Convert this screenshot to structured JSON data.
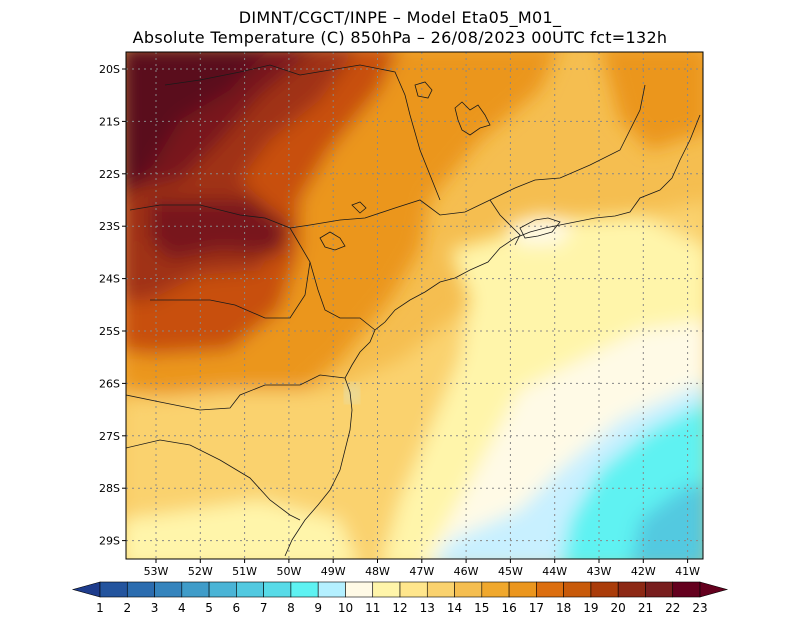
{
  "header": {
    "line1": "DIMNT/CGCT/INPE –  Model Eta05_M01_",
    "line2": "Absolute Temperature (C) 850hPa –  26/08/2023 00UTC fct=132h"
  },
  "axes": {
    "lat_labels": [
      "20S",
      "21S",
      "22S",
      "23S",
      "24S",
      "25S",
      "26S",
      "27S",
      "28S",
      "29S"
    ],
    "lon_labels": [
      "53W",
      "52W",
      "51W",
      "50W",
      "49W",
      "48W",
      "47W",
      "46W",
      "45W",
      "44W",
      "43W",
      "42W",
      "41W"
    ]
  },
  "colorbar": {
    "labels": [
      "1",
      "2",
      "3",
      "4",
      "5",
      "6",
      "7",
      "8",
      "9",
      "10",
      "11",
      "12",
      "13",
      "14",
      "15",
      "16",
      "17",
      "18",
      "19",
      "20",
      "21",
      "22",
      "23"
    ],
    "colors": [
      "#1e3c8c",
      "#23549e",
      "#2b6caf",
      "#3584bd",
      "#3f9cc9",
      "#4ab4d6",
      "#52c9e0",
      "#58dbe8",
      "#5ef2f2",
      "#b4f0ff",
      "#fffae6",
      "#fff5aa",
      "#ffe68c",
      "#fad26e",
      "#f5be50",
      "#f0a82d",
      "#eb961e",
      "#dc6e0f",
      "#c85a0a",
      "#aa3c0a",
      "#8c2814",
      "#781e1e",
      "#64001e"
    ]
  },
  "map_colors": {
    "very_hot": "#5a0f1e",
    "hot_dark": "#78141e",
    "hot": "#a03214",
    "orange_red": "#c8500a",
    "orange": "#eb961e",
    "light_orange": "#f5be50",
    "yellow": "#fad26e",
    "pale_yellow": "#fff5aa",
    "cream": "#fffae6",
    "light_cyan": "#c8f0ff",
    "cyan": "#5ef2f2",
    "teal": "#52c9e0"
  }
}
